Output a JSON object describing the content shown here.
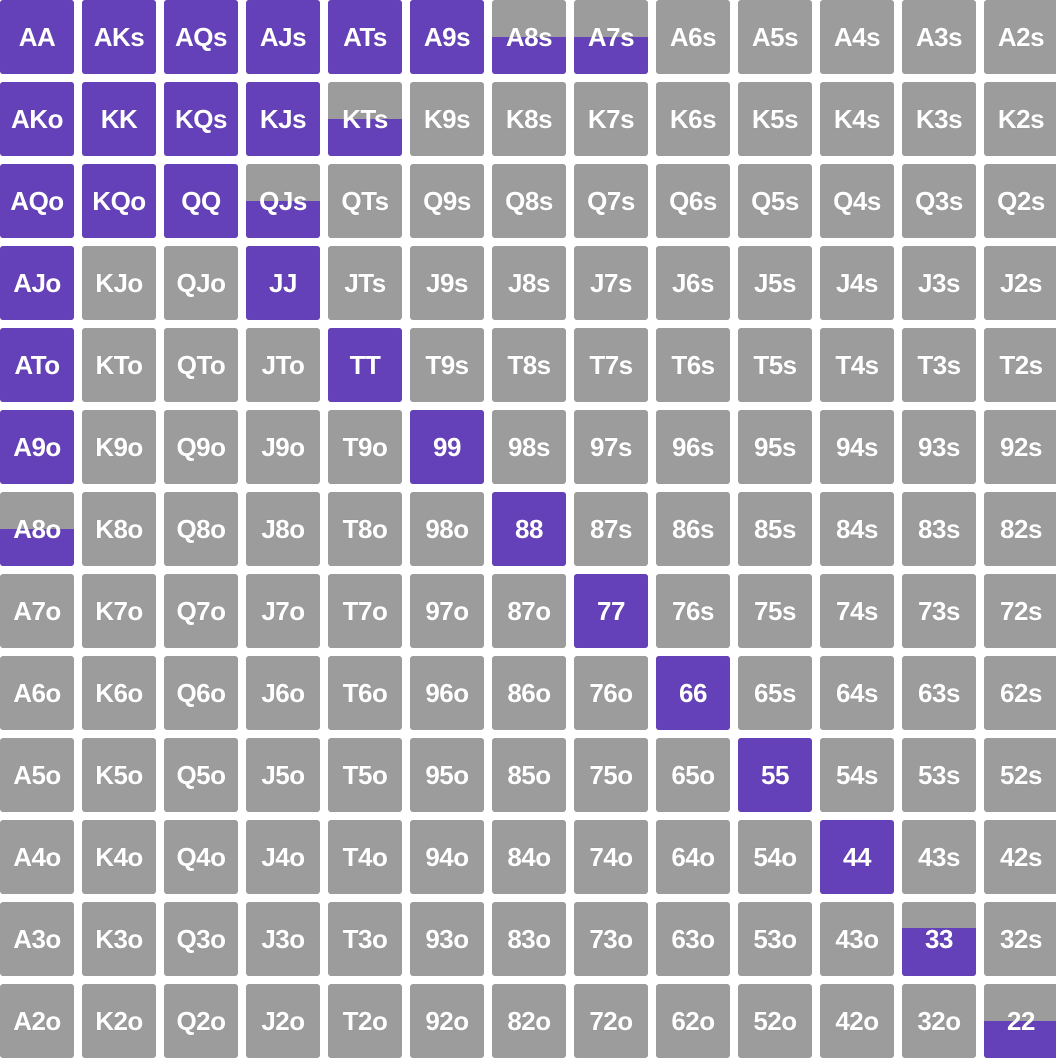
{
  "colors": {
    "unselected": "#9c9c9c",
    "selected": "#6441b8",
    "label": "#ffffff",
    "gap": "#ffffff"
  },
  "hand_grid": {
    "ranks": [
      "A",
      "K",
      "Q",
      "J",
      "T",
      "9",
      "8",
      "7",
      "6",
      "5",
      "4",
      "3",
      "2"
    ],
    "rows": [
      [
        {
          "hand": "AA",
          "frequency": 1
        },
        {
          "hand": "AKs",
          "frequency": 1
        },
        {
          "hand": "AQs",
          "frequency": 1
        },
        {
          "hand": "AJs",
          "frequency": 1
        },
        {
          "hand": "ATs",
          "frequency": 1
        },
        {
          "hand": "A9s",
          "frequency": 1
        },
        {
          "hand": "A8s",
          "frequency": 0.5
        },
        {
          "hand": "A7s",
          "frequency": 0.5
        },
        {
          "hand": "A6s",
          "frequency": 0
        },
        {
          "hand": "A5s",
          "frequency": 0
        },
        {
          "hand": "A4s",
          "frequency": 0
        },
        {
          "hand": "A3s",
          "frequency": 0
        },
        {
          "hand": "A2s",
          "frequency": 0
        }
      ],
      [
        {
          "hand": "AKo",
          "frequency": 1
        },
        {
          "hand": "KK",
          "frequency": 1
        },
        {
          "hand": "KQs",
          "frequency": 1
        },
        {
          "hand": "KJs",
          "frequency": 1
        },
        {
          "hand": "KTs",
          "frequency": 0.5
        },
        {
          "hand": "K9s",
          "frequency": 0
        },
        {
          "hand": "K8s",
          "frequency": 0
        },
        {
          "hand": "K7s",
          "frequency": 0
        },
        {
          "hand": "K6s",
          "frequency": 0
        },
        {
          "hand": "K5s",
          "frequency": 0
        },
        {
          "hand": "K4s",
          "frequency": 0
        },
        {
          "hand": "K3s",
          "frequency": 0
        },
        {
          "hand": "K2s",
          "frequency": 0
        }
      ],
      [
        {
          "hand": "AQo",
          "frequency": 1
        },
        {
          "hand": "KQo",
          "frequency": 1
        },
        {
          "hand": "QQ",
          "frequency": 1
        },
        {
          "hand": "QJs",
          "frequency": 0.5
        },
        {
          "hand": "QTs",
          "frequency": 0
        },
        {
          "hand": "Q9s",
          "frequency": 0
        },
        {
          "hand": "Q8s",
          "frequency": 0
        },
        {
          "hand": "Q7s",
          "frequency": 0
        },
        {
          "hand": "Q6s",
          "frequency": 0
        },
        {
          "hand": "Q5s",
          "frequency": 0
        },
        {
          "hand": "Q4s",
          "frequency": 0
        },
        {
          "hand": "Q3s",
          "frequency": 0
        },
        {
          "hand": "Q2s",
          "frequency": 0
        }
      ],
      [
        {
          "hand": "AJo",
          "frequency": 1
        },
        {
          "hand": "KJo",
          "frequency": 0
        },
        {
          "hand": "QJo",
          "frequency": 0
        },
        {
          "hand": "JJ",
          "frequency": 1
        },
        {
          "hand": "JTs",
          "frequency": 0
        },
        {
          "hand": "J9s",
          "frequency": 0
        },
        {
          "hand": "J8s",
          "frequency": 0
        },
        {
          "hand": "J7s",
          "frequency": 0
        },
        {
          "hand": "J6s",
          "frequency": 0
        },
        {
          "hand": "J5s",
          "frequency": 0
        },
        {
          "hand": "J4s",
          "frequency": 0
        },
        {
          "hand": "J3s",
          "frequency": 0
        },
        {
          "hand": "J2s",
          "frequency": 0
        }
      ],
      [
        {
          "hand": "ATo",
          "frequency": 1
        },
        {
          "hand": "KTo",
          "frequency": 0
        },
        {
          "hand": "QTo",
          "frequency": 0
        },
        {
          "hand": "JTo",
          "frequency": 0
        },
        {
          "hand": "TT",
          "frequency": 1
        },
        {
          "hand": "T9s",
          "frequency": 0
        },
        {
          "hand": "T8s",
          "frequency": 0
        },
        {
          "hand": "T7s",
          "frequency": 0
        },
        {
          "hand": "T6s",
          "frequency": 0
        },
        {
          "hand": "T5s",
          "frequency": 0
        },
        {
          "hand": "T4s",
          "frequency": 0
        },
        {
          "hand": "T3s",
          "frequency": 0
        },
        {
          "hand": "T2s",
          "frequency": 0
        }
      ],
      [
        {
          "hand": "A9o",
          "frequency": 1
        },
        {
          "hand": "K9o",
          "frequency": 0
        },
        {
          "hand": "Q9o",
          "frequency": 0
        },
        {
          "hand": "J9o",
          "frequency": 0
        },
        {
          "hand": "T9o",
          "frequency": 0
        },
        {
          "hand": "99",
          "frequency": 1
        },
        {
          "hand": "98s",
          "frequency": 0
        },
        {
          "hand": "97s",
          "frequency": 0
        },
        {
          "hand": "96s",
          "frequency": 0
        },
        {
          "hand": "95s",
          "frequency": 0
        },
        {
          "hand": "94s",
          "frequency": 0
        },
        {
          "hand": "93s",
          "frequency": 0
        },
        {
          "hand": "92s",
          "frequency": 0
        }
      ],
      [
        {
          "hand": "A8o",
          "frequency": 0.5
        },
        {
          "hand": "K8o",
          "frequency": 0
        },
        {
          "hand": "Q8o",
          "frequency": 0
        },
        {
          "hand": "J8o",
          "frequency": 0
        },
        {
          "hand": "T8o",
          "frequency": 0
        },
        {
          "hand": "98o",
          "frequency": 0
        },
        {
          "hand": "88",
          "frequency": 1
        },
        {
          "hand": "87s",
          "frequency": 0
        },
        {
          "hand": "86s",
          "frequency": 0
        },
        {
          "hand": "85s",
          "frequency": 0
        },
        {
          "hand": "84s",
          "frequency": 0
        },
        {
          "hand": "83s",
          "frequency": 0
        },
        {
          "hand": "82s",
          "frequency": 0
        }
      ],
      [
        {
          "hand": "A7o",
          "frequency": 0
        },
        {
          "hand": "K7o",
          "frequency": 0
        },
        {
          "hand": "Q7o",
          "frequency": 0
        },
        {
          "hand": "J7o",
          "frequency": 0
        },
        {
          "hand": "T7o",
          "frequency": 0
        },
        {
          "hand": "97o",
          "frequency": 0
        },
        {
          "hand": "87o",
          "frequency": 0
        },
        {
          "hand": "77",
          "frequency": 1
        },
        {
          "hand": "76s",
          "frequency": 0
        },
        {
          "hand": "75s",
          "frequency": 0
        },
        {
          "hand": "74s",
          "frequency": 0
        },
        {
          "hand": "73s",
          "frequency": 0
        },
        {
          "hand": "72s",
          "frequency": 0
        }
      ],
      [
        {
          "hand": "A6o",
          "frequency": 0
        },
        {
          "hand": "K6o",
          "frequency": 0
        },
        {
          "hand": "Q6o",
          "frequency": 0
        },
        {
          "hand": "J6o",
          "frequency": 0
        },
        {
          "hand": "T6o",
          "frequency": 0
        },
        {
          "hand": "96o",
          "frequency": 0
        },
        {
          "hand": "86o",
          "frequency": 0
        },
        {
          "hand": "76o",
          "frequency": 0
        },
        {
          "hand": "66",
          "frequency": 1
        },
        {
          "hand": "65s",
          "frequency": 0
        },
        {
          "hand": "64s",
          "frequency": 0
        },
        {
          "hand": "63s",
          "frequency": 0
        },
        {
          "hand": "62s",
          "frequency": 0
        }
      ],
      [
        {
          "hand": "A5o",
          "frequency": 0
        },
        {
          "hand": "K5o",
          "frequency": 0
        },
        {
          "hand": "Q5o",
          "frequency": 0
        },
        {
          "hand": "J5o",
          "frequency": 0
        },
        {
          "hand": "T5o",
          "frequency": 0
        },
        {
          "hand": "95o",
          "frequency": 0
        },
        {
          "hand": "85o",
          "frequency": 0
        },
        {
          "hand": "75o",
          "frequency": 0
        },
        {
          "hand": "65o",
          "frequency": 0
        },
        {
          "hand": "55",
          "frequency": 1
        },
        {
          "hand": "54s",
          "frequency": 0
        },
        {
          "hand": "53s",
          "frequency": 0
        },
        {
          "hand": "52s",
          "frequency": 0
        }
      ],
      [
        {
          "hand": "A4o",
          "frequency": 0
        },
        {
          "hand": "K4o",
          "frequency": 0
        },
        {
          "hand": "Q4o",
          "frequency": 0
        },
        {
          "hand": "J4o",
          "frequency": 0
        },
        {
          "hand": "T4o",
          "frequency": 0
        },
        {
          "hand": "94o",
          "frequency": 0
        },
        {
          "hand": "84o",
          "frequency": 0
        },
        {
          "hand": "74o",
          "frequency": 0
        },
        {
          "hand": "64o",
          "frequency": 0
        },
        {
          "hand": "54o",
          "frequency": 0
        },
        {
          "hand": "44",
          "frequency": 1
        },
        {
          "hand": "43s",
          "frequency": 0
        },
        {
          "hand": "42s",
          "frequency": 0
        }
      ],
      [
        {
          "hand": "A3o",
          "frequency": 0
        },
        {
          "hand": "K3o",
          "frequency": 0
        },
        {
          "hand": "Q3o",
          "frequency": 0
        },
        {
          "hand": "J3o",
          "frequency": 0
        },
        {
          "hand": "T3o",
          "frequency": 0
        },
        {
          "hand": "93o",
          "frequency": 0
        },
        {
          "hand": "83o",
          "frequency": 0
        },
        {
          "hand": "73o",
          "frequency": 0
        },
        {
          "hand": "63o",
          "frequency": 0
        },
        {
          "hand": "53o",
          "frequency": 0
        },
        {
          "hand": "43o",
          "frequency": 0
        },
        {
          "hand": "33",
          "frequency": 0.65
        },
        {
          "hand": "32s",
          "frequency": 0
        }
      ],
      [
        {
          "hand": "A2o",
          "frequency": 0
        },
        {
          "hand": "K2o",
          "frequency": 0
        },
        {
          "hand": "Q2o",
          "frequency": 0
        },
        {
          "hand": "J2o",
          "frequency": 0
        },
        {
          "hand": "T2o",
          "frequency": 0
        },
        {
          "hand": "92o",
          "frequency": 0
        },
        {
          "hand": "82o",
          "frequency": 0
        },
        {
          "hand": "72o",
          "frequency": 0
        },
        {
          "hand": "62o",
          "frequency": 0
        },
        {
          "hand": "52o",
          "frequency": 0
        },
        {
          "hand": "42o",
          "frequency": 0
        },
        {
          "hand": "32o",
          "frequency": 0
        },
        {
          "hand": "22",
          "frequency": 0.5
        }
      ]
    ]
  }
}
